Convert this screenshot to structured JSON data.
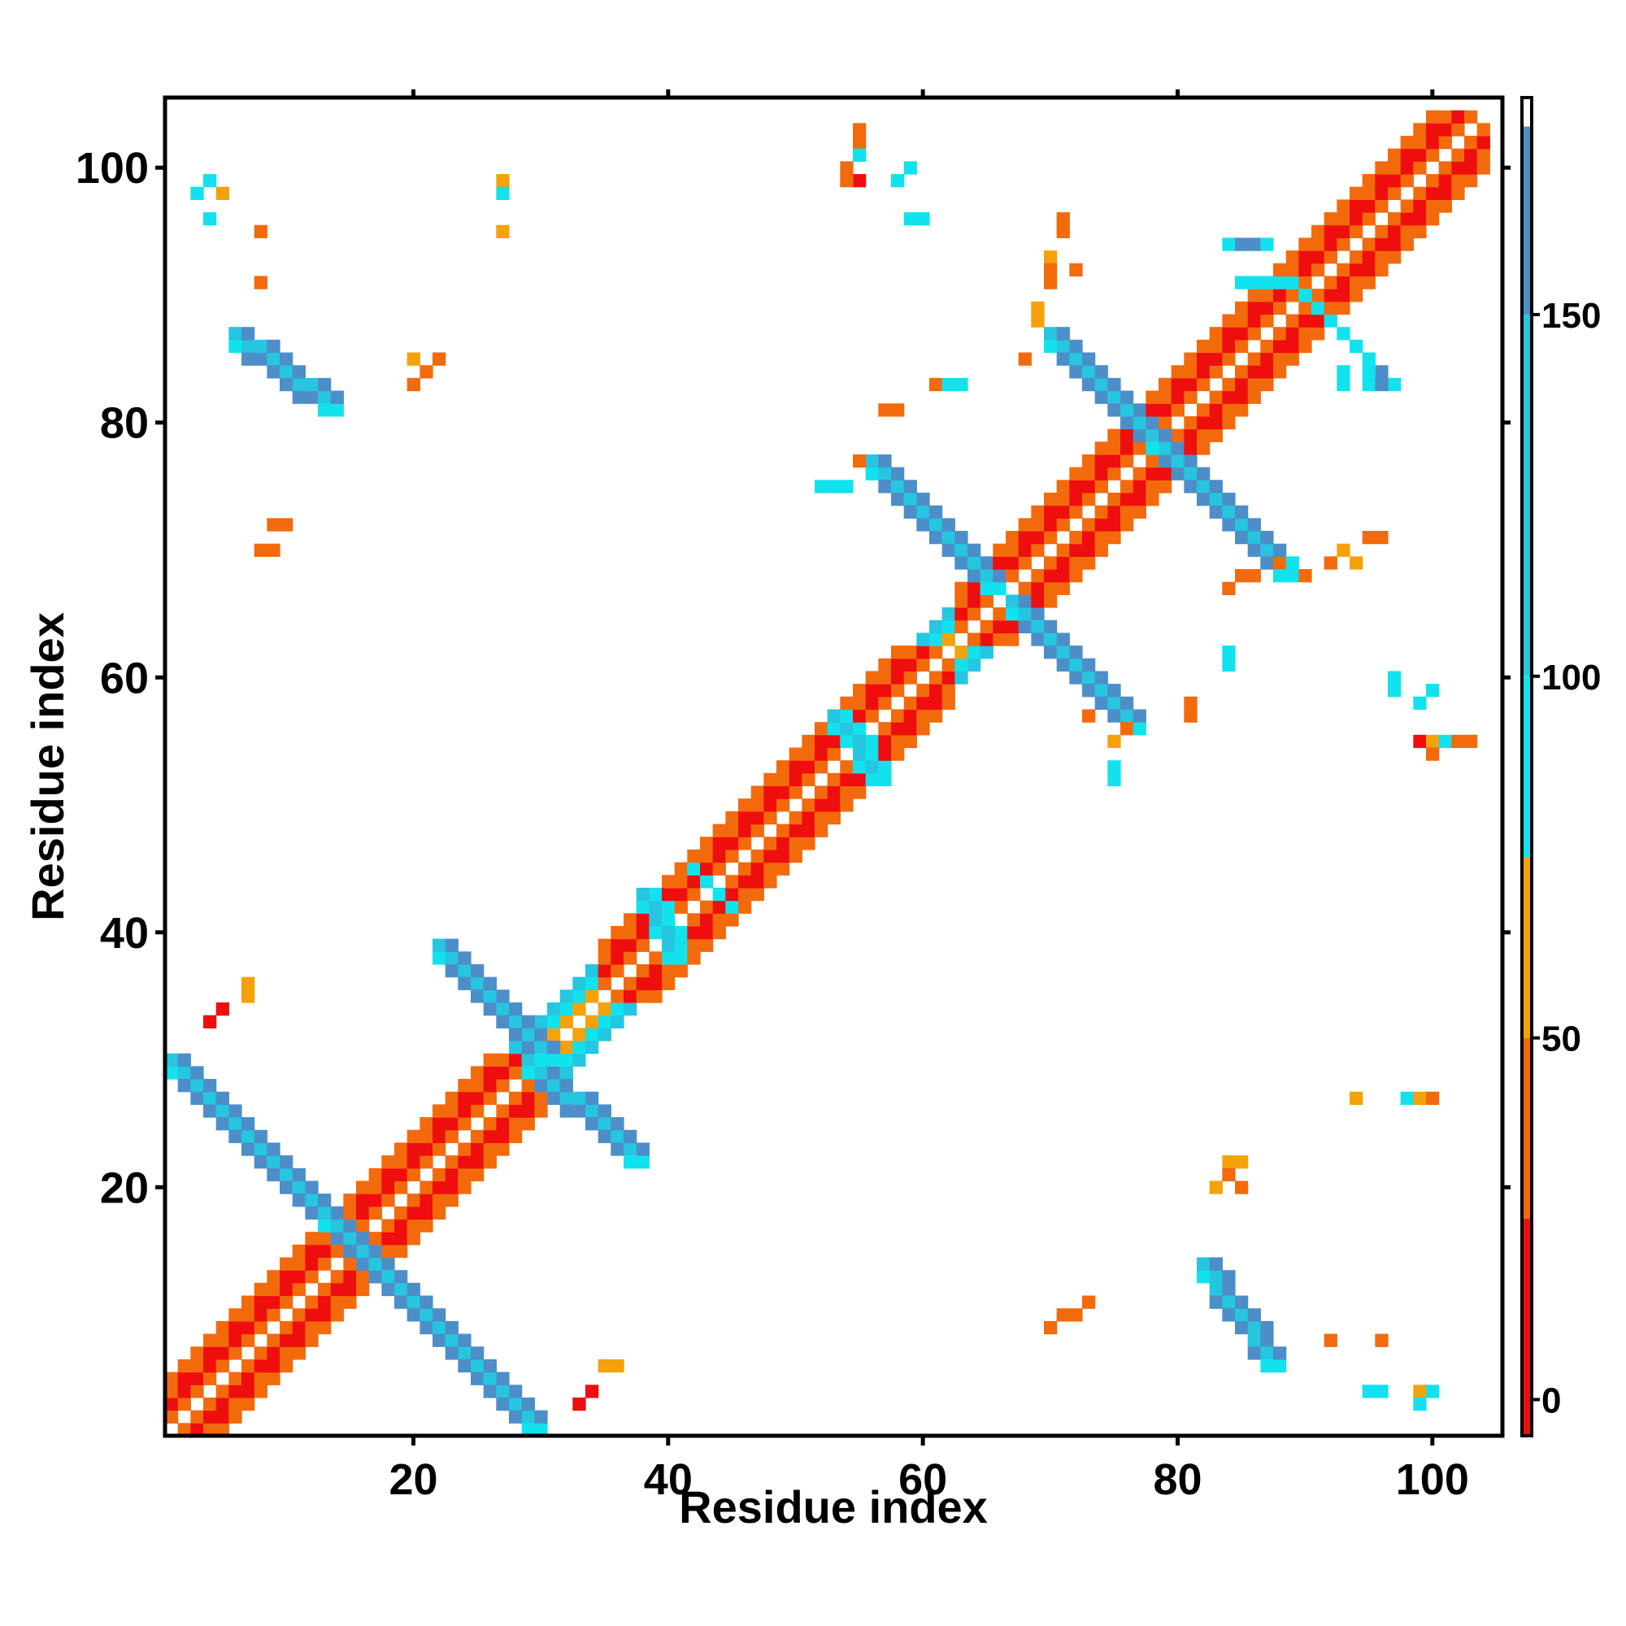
{
  "chart_data": {
    "type": "heatmap",
    "title": "",
    "xlabel": "Residue index",
    "ylabel": "Residue index",
    "xlim": [
      1,
      105
    ],
    "ylim": [
      1,
      105
    ],
    "x_ticks": [
      20,
      40,
      60,
      80,
      100
    ],
    "y_ticks": [
      20,
      40,
      60,
      80,
      100
    ],
    "x_tick_labels": [
      "20",
      "40",
      "60",
      "80",
      "100"
    ],
    "y_tick_labels": [
      "20",
      "40",
      "60",
      "80",
      "100"
    ],
    "grid": false,
    "colorbar": {
      "range": [
        -5,
        180
      ],
      "ticks": [
        0,
        50,
        100,
        150
      ],
      "tick_labels": [
        "0",
        "50",
        "100",
        "150"
      ],
      "bands": [
        {
          "from": -5,
          "to": 25,
          "color": "#ee0e0e"
        },
        {
          "from": 25,
          "to": 50,
          "color": "#f36a0c"
        },
        {
          "from": 50,
          "to": 75,
          "color": "#f5a20a"
        },
        {
          "from": 75,
          "to": 100,
          "color": "#12e2ee"
        },
        {
          "from": 100,
          "to": 150,
          "color": "#26c6e0"
        },
        {
          "from": 150,
          "to": 176,
          "color": "#4d8ec9"
        },
        {
          "from": 176,
          "to": 180,
          "color": "#ffffff"
        }
      ]
    },
    "value_levels": {
      "red": 10,
      "dark_orange": 38,
      "orange": 62,
      "cyan": 92,
      "light_blue": 125,
      "steel_blue": 165
    },
    "diagonal_helix_segments": [
      [
        1,
        30
      ],
      [
        35,
        62
      ],
      [
        63,
        104
      ]
    ],
    "contact_segments": [
      {
        "from": [
          1,
          29
        ],
        "to": [
          17,
          13
        ],
        "value": 165,
        "width": 2
      },
      {
        "from": [
          13,
          17
        ],
        "to": [
          29,
          1
        ],
        "value": 165,
        "width": 2
      },
      {
        "from": [
          29,
          29
        ],
        "to": [
          37,
          22
        ],
        "value": 165,
        "width": 2
      },
      {
        "from": [
          22,
          38
        ],
        "to": [
          30,
          30
        ],
        "value": 165,
        "width": 2
      },
      {
        "from": [
          38,
          42
        ],
        "to": [
          40,
          38
        ],
        "value": 92,
        "width": 2
      },
      {
        "from": [
          42,
          45
        ],
        "to": [
          45,
          42
        ],
        "value": 92,
        "width": 1
      },
      {
        "from": [
          53,
          56
        ],
        "to": [
          56,
          52
        ],
        "value": 92,
        "width": 2
      },
      {
        "from": [
          56,
          76
        ],
        "to": [
          65,
          67
        ],
        "value": 165,
        "width": 2
      },
      {
        "from": [
          67,
          65
        ],
        "to": [
          76,
          56
        ],
        "value": 165,
        "width": 2
      },
      {
        "from": [
          70,
          86
        ],
        "to": [
          78,
          78
        ],
        "value": 165,
        "width": 2
      },
      {
        "from": [
          78,
          78
        ],
        "to": [
          88,
          68
        ],
        "value": 165,
        "width": 2
      },
      {
        "from": [
          6,
          86
        ],
        "to": [
          13,
          81
        ],
        "value": 165,
        "width": 2
      },
      {
        "from": [
          82,
          13
        ],
        "to": [
          87,
          6
        ],
        "value": 165,
        "width": 2
      },
      {
        "from": [
          89,
          91
        ],
        "to": [
          97,
          83
        ],
        "value": 92,
        "width": 1
      },
      {
        "from": [
          84,
          94
        ],
        "to": [
          87,
          94
        ],
        "value": 165,
        "width": 1
      },
      {
        "from": [
          85,
          91
        ],
        "to": [
          89,
          91
        ],
        "value": 92,
        "width": 1
      }
    ],
    "point_contacts": [
      [
        4,
        99,
        92
      ],
      [
        5,
        98,
        62
      ],
      [
        3,
        98,
        92
      ],
      [
        4,
        96,
        92
      ],
      [
        8,
        95,
        38
      ],
      [
        8,
        91,
        38
      ],
      [
        27,
        99,
        62
      ],
      [
        27,
        98,
        92
      ],
      [
        27,
        95,
        62
      ],
      [
        20,
        85,
        62
      ],
      [
        21,
        84,
        38
      ],
      [
        22,
        85,
        38
      ],
      [
        20,
        83,
        38
      ],
      [
        9,
        72,
        38
      ],
      [
        10,
        72,
        38
      ],
      [
        9,
        70,
        38
      ],
      [
        8,
        70,
        38
      ],
      [
        7,
        36,
        62
      ],
      [
        7,
        35,
        62
      ],
      [
        5,
        34,
        10
      ],
      [
        4,
        33,
        10
      ],
      [
        36,
        6,
        62
      ],
      [
        35,
        6,
        62
      ],
      [
        34,
        4,
        10
      ],
      [
        33,
        3,
        10
      ],
      [
        55,
        103,
        38
      ],
      [
        55,
        102,
        38
      ],
      [
        55,
        101,
        92
      ],
      [
        55,
        99,
        10
      ],
      [
        54,
        100,
        38
      ],
      [
        54,
        99,
        38
      ],
      [
        59,
        100,
        92
      ],
      [
        58,
        99,
        92
      ],
      [
        59,
        96,
        92
      ],
      [
        60,
        96,
        92
      ],
      [
        61,
        83,
        38
      ],
      [
        62,
        83,
        92
      ],
      [
        63,
        83,
        92
      ],
      [
        57,
        81,
        38
      ],
      [
        58,
        81,
        38
      ],
      [
        55,
        77,
        38
      ],
      [
        53,
        75,
        92
      ],
      [
        54,
        75,
        92
      ],
      [
        52,
        75,
        92
      ],
      [
        71,
        96,
        38
      ],
      [
        71,
        95,
        38
      ],
      [
        70,
        93,
        62
      ],
      [
        70,
        92,
        38
      ],
      [
        72,
        92,
        38
      ],
      [
        70,
        91,
        38
      ],
      [
        69,
        89,
        62
      ],
      [
        69,
        88,
        62
      ],
      [
        68,
        85,
        38
      ],
      [
        73,
        57,
        38
      ],
      [
        76,
        56,
        38
      ],
      [
        75,
        55,
        62
      ],
      [
        75,
        53,
        92
      ],
      [
        75,
        52,
        92
      ],
      [
        81,
        58,
        38
      ],
      [
        81,
        57,
        38
      ],
      [
        84,
        62,
        92
      ],
      [
        84,
        61,
        92
      ],
      [
        88,
        69,
        38
      ],
      [
        89,
        69,
        92
      ],
      [
        90,
        68,
        38
      ],
      [
        92,
        69,
        38
      ],
      [
        93,
        70,
        62
      ],
      [
        94,
        69,
        62
      ],
      [
        96,
        71,
        38
      ],
      [
        95,
        71,
        38
      ],
      [
        86,
        68,
        38
      ],
      [
        85,
        68,
        38
      ],
      [
        84,
        67,
        38
      ],
      [
        97,
        60,
        92
      ],
      [
        97,
        59,
        92
      ],
      [
        100,
        59,
        92
      ],
      [
        99,
        58,
        92
      ],
      [
        99,
        55,
        10
      ],
      [
        100,
        55,
        62
      ],
      [
        101,
        55,
        92
      ],
      [
        102,
        55,
        38
      ],
      [
        103,
        55,
        38
      ],
      [
        100,
        54,
        38
      ],
      [
        94,
        27,
        62
      ],
      [
        98,
        27,
        92
      ],
      [
        99,
        27,
        62
      ],
      [
        100,
        27,
        38
      ],
      [
        84,
        22,
        62
      ],
      [
        85,
        22,
        62
      ],
      [
        83,
        20,
        62
      ],
      [
        84,
        21,
        38
      ],
      [
        85,
        20,
        38
      ],
      [
        71,
        10,
        38
      ],
      [
        72,
        10,
        38
      ],
      [
        73,
        11,
        38
      ],
      [
        70,
        9,
        38
      ],
      [
        92,
        8,
        38
      ],
      [
        96,
        8,
        38
      ],
      [
        95,
        4,
        92
      ],
      [
        96,
        4,
        92
      ],
      [
        99,
        4,
        62
      ],
      [
        100,
        4,
        92
      ],
      [
        99,
        3,
        92
      ],
      [
        95,
        84,
        92
      ],
      [
        95,
        83,
        92
      ],
      [
        93,
        84,
        92
      ],
      [
        93,
        83,
        92
      ],
      [
        96,
        84,
        165
      ],
      [
        96,
        83,
        165
      ]
    ]
  }
}
